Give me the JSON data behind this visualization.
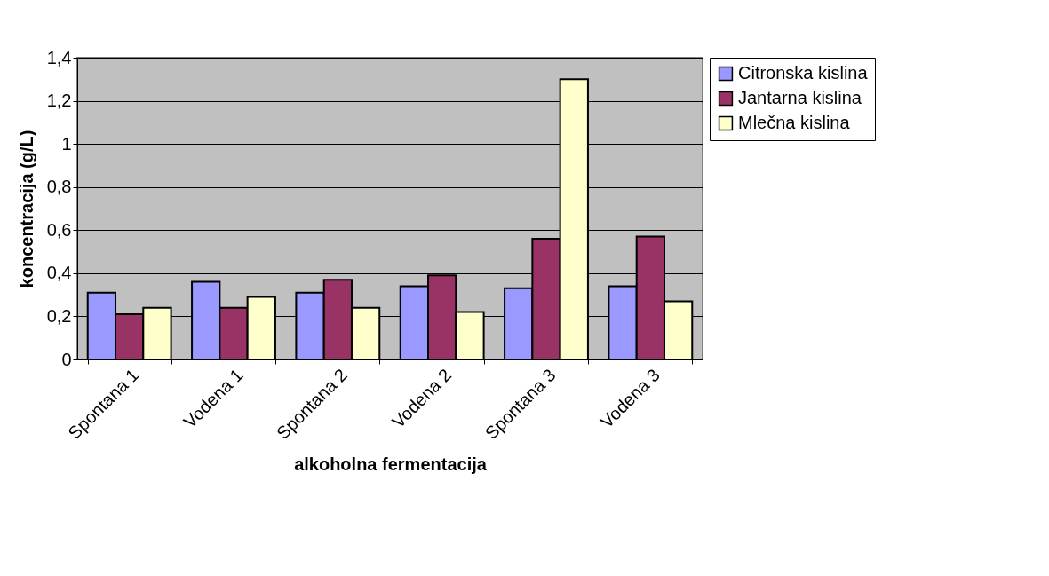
{
  "chart_data": {
    "type": "bar",
    "xlabel": "alkoholna fermentacija",
    "ylabel": "koncentracija (g/L)",
    "categories": [
      "Spontana 1",
      "Vodena 1",
      "Spontana 2",
      "Vodena 2",
      "Spontana 3",
      "Vodena 3"
    ],
    "series": [
      {
        "name": "Citronska kislina",
        "color": "#9999ff",
        "values": [
          0.31,
          0.36,
          0.31,
          0.34,
          0.33,
          0.34
        ]
      },
      {
        "name": "Jantarna kislina",
        "color": "#993366",
        "values": [
          0.21,
          0.24,
          0.37,
          0.39,
          0.56,
          0.57
        ]
      },
      {
        "name": "Mlečna kislina",
        "color": "#ffffcc",
        "values": [
          0.24,
          0.29,
          0.24,
          0.22,
          1.3,
          0.27
        ]
      }
    ],
    "ylim": [
      0,
      1.4
    ],
    "yticks": [
      {
        "value": 0,
        "label": "0"
      },
      {
        "value": 0.2,
        "label": "0,2"
      },
      {
        "value": 0.4,
        "label": "0,4"
      },
      {
        "value": 0.6,
        "label": "0,6"
      },
      {
        "value": 0.8,
        "label": "0,8"
      },
      {
        "value": 1,
        "label": "1"
      },
      {
        "value": 1.2,
        "label": "1,2"
      },
      {
        "value": 1.4,
        "label": "1,4"
      }
    ],
    "grid": "y",
    "legend": "right"
  }
}
